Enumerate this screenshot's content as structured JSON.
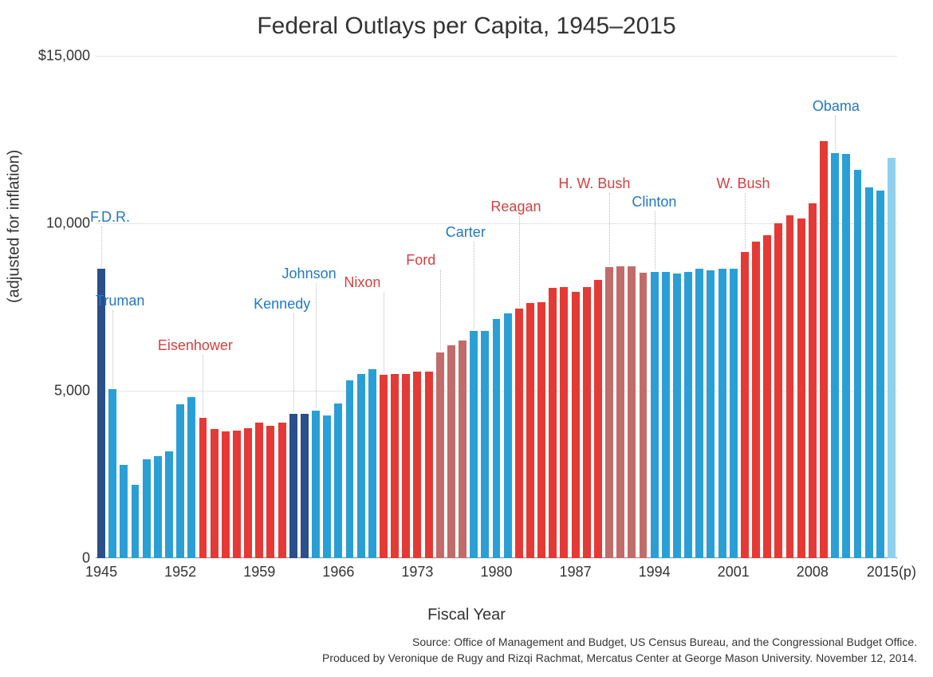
{
  "type": "bar",
  "title": "Federal Outlays per Capita, 1945–2015",
  "ylabel": "(adjusted for inflation)",
  "xlabel": "Fiscal Year",
  "background_color": "#ffffff",
  "grid_color": "#e6e6e6",
  "title_fontsize": 30,
  "label_fontsize": 20,
  "tick_fontsize": 18,
  "pres_label_fontsize": 18,
  "ylim": [
    0,
    15000
  ],
  "yticks": [
    {
      "v": 0,
      "label": "0"
    },
    {
      "v": 5000,
      "label": "5,000"
    },
    {
      "v": 10000,
      "label": "10,000"
    },
    {
      "v": 15000,
      "label": "$15,000"
    }
  ],
  "xticks": [
    {
      "year": 1945,
      "label": "1945"
    },
    {
      "year": 1952,
      "label": "1952"
    },
    {
      "year": 1959,
      "label": "1959"
    },
    {
      "year": 1966,
      "label": "1966"
    },
    {
      "year": 1973,
      "label": "1973"
    },
    {
      "year": 1980,
      "label": "1980"
    },
    {
      "year": 1987,
      "label": "1987"
    },
    {
      "year": 1994,
      "label": "1994"
    },
    {
      "year": 2001,
      "label": "2001"
    },
    {
      "year": 2008,
      "label": "2008"
    },
    {
      "year": 2015,
      "label": "2015(p)"
    }
  ],
  "colors": {
    "dem": "#2a9fd6",
    "dem_dark": "#2a4f8a",
    "rep": "#e53935",
    "rep_muted": "#c26b6b",
    "proj": "#8fd0ef",
    "dem_text": "#1f78c7",
    "rep_text": "#d34040"
  },
  "bar_width_ratio": 0.7,
  "source_line1": "Source: Office of Management and Budget, US Census Bureau, and the Congressional Budget Office.",
  "source_line2": "Produced by Veronique de Rugy and Rizqi Rachmat, Mercatus Center at George Mason University. November 12, 2014.",
  "bars": [
    {
      "year": 1945,
      "value": 8650,
      "colorKey": "dem_dark"
    },
    {
      "year": 1946,
      "value": 5050,
      "colorKey": "dem"
    },
    {
      "year": 1947,
      "value": 2780,
      "colorKey": "dem"
    },
    {
      "year": 1948,
      "value": 2180,
      "colorKey": "dem"
    },
    {
      "year": 1949,
      "value": 2950,
      "colorKey": "dem"
    },
    {
      "year": 1950,
      "value": 3050,
      "colorKey": "dem"
    },
    {
      "year": 1951,
      "value": 3180,
      "colorKey": "dem"
    },
    {
      "year": 1952,
      "value": 4600,
      "colorKey": "dem"
    },
    {
      "year": 1953,
      "value": 4820,
      "colorKey": "dem"
    },
    {
      "year": 1954,
      "value": 4200,
      "colorKey": "rep"
    },
    {
      "year": 1955,
      "value": 3850,
      "colorKey": "rep"
    },
    {
      "year": 1956,
      "value": 3780,
      "colorKey": "rep"
    },
    {
      "year": 1957,
      "value": 3820,
      "colorKey": "rep"
    },
    {
      "year": 1958,
      "value": 3880,
      "colorKey": "rep"
    },
    {
      "year": 1959,
      "value": 4050,
      "colorKey": "rep"
    },
    {
      "year": 1960,
      "value": 3950,
      "colorKey": "rep"
    },
    {
      "year": 1961,
      "value": 4050,
      "colorKey": "rep"
    },
    {
      "year": 1962,
      "value": 4300,
      "colorKey": "dem_dark"
    },
    {
      "year": 1963,
      "value": 4300,
      "colorKey": "dem_dark"
    },
    {
      "year": 1964,
      "value": 4400,
      "colorKey": "dem"
    },
    {
      "year": 1965,
      "value": 4270,
      "colorKey": "dem"
    },
    {
      "year": 1966,
      "value": 4620,
      "colorKey": "dem"
    },
    {
      "year": 1967,
      "value": 5300,
      "colorKey": "dem"
    },
    {
      "year": 1968,
      "value": 5500,
      "colorKey": "dem"
    },
    {
      "year": 1969,
      "value": 5650,
      "colorKey": "dem"
    },
    {
      "year": 1970,
      "value": 5480,
      "colorKey": "rep"
    },
    {
      "year": 1971,
      "value": 5500,
      "colorKey": "rep"
    },
    {
      "year": 1972,
      "value": 5500,
      "colorKey": "rep"
    },
    {
      "year": 1973,
      "value": 5580,
      "colorKey": "rep"
    },
    {
      "year": 1974,
      "value": 5580,
      "colorKey": "rep"
    },
    {
      "year": 1975,
      "value": 6150,
      "colorKey": "rep_muted"
    },
    {
      "year": 1976,
      "value": 6350,
      "colorKey": "rep_muted"
    },
    {
      "year": 1977,
      "value": 6500,
      "colorKey": "rep_muted"
    },
    {
      "year": 1978,
      "value": 6780,
      "colorKey": "dem"
    },
    {
      "year": 1979,
      "value": 6780,
      "colorKey": "dem"
    },
    {
      "year": 1980,
      "value": 7150,
      "colorKey": "dem"
    },
    {
      "year": 1981,
      "value": 7300,
      "colorKey": "dem"
    },
    {
      "year": 1982,
      "value": 7450,
      "colorKey": "rep"
    },
    {
      "year": 1983,
      "value": 7620,
      "colorKey": "rep"
    },
    {
      "year": 1984,
      "value": 7650,
      "colorKey": "rep"
    },
    {
      "year": 1985,
      "value": 8080,
      "colorKey": "rep"
    },
    {
      "year": 1986,
      "value": 8100,
      "colorKey": "rep"
    },
    {
      "year": 1987,
      "value": 7950,
      "colorKey": "rep"
    },
    {
      "year": 1988,
      "value": 8100,
      "colorKey": "rep"
    },
    {
      "year": 1989,
      "value": 8300,
      "colorKey": "rep"
    },
    {
      "year": 1990,
      "value": 8700,
      "colorKey": "rep_muted"
    },
    {
      "year": 1991,
      "value": 8720,
      "colorKey": "rep_muted"
    },
    {
      "year": 1992,
      "value": 8720,
      "colorKey": "rep_muted"
    },
    {
      "year": 1993,
      "value": 8520,
      "colorKey": "rep_muted"
    },
    {
      "year": 1994,
      "value": 8550,
      "colorKey": "dem"
    },
    {
      "year": 1995,
      "value": 8550,
      "colorKey": "dem"
    },
    {
      "year": 1996,
      "value": 8500,
      "colorKey": "dem"
    },
    {
      "year": 1997,
      "value": 8550,
      "colorKey": "dem"
    },
    {
      "year": 1998,
      "value": 8650,
      "colorKey": "dem"
    },
    {
      "year": 1999,
      "value": 8600,
      "colorKey": "dem"
    },
    {
      "year": 2000,
      "value": 8650,
      "colorKey": "dem"
    },
    {
      "year": 2001,
      "value": 8650,
      "colorKey": "dem"
    },
    {
      "year": 2002,
      "value": 9150,
      "colorKey": "rep"
    },
    {
      "year": 2003,
      "value": 9450,
      "colorKey": "rep"
    },
    {
      "year": 2004,
      "value": 9650,
      "colorKey": "rep"
    },
    {
      "year": 2005,
      "value": 10000,
      "colorKey": "rep"
    },
    {
      "year": 2006,
      "value": 10250,
      "colorKey": "rep"
    },
    {
      "year": 2007,
      "value": 10150,
      "colorKey": "rep"
    },
    {
      "year": 2008,
      "value": 10600,
      "colorKey": "rep"
    },
    {
      "year": 2009,
      "value": 12450,
      "colorKey": "rep"
    },
    {
      "year": 2010,
      "value": 12100,
      "colorKey": "dem"
    },
    {
      "year": 2011,
      "value": 12080,
      "colorKey": "dem"
    },
    {
      "year": 2012,
      "value": 11600,
      "colorKey": "dem"
    },
    {
      "year": 2013,
      "value": 11080,
      "colorKey": "dem"
    },
    {
      "year": 2014,
      "value": 10970,
      "colorKey": "dem"
    },
    {
      "year": 2015,
      "value": 11950,
      "colorKey": "proj"
    }
  ],
  "presidents": [
    {
      "name": "F.D.R.",
      "party": "dem",
      "label_year": 1944.0,
      "label_value": 10200,
      "leader_year": 1945,
      "align": "left"
    },
    {
      "name": "Truman",
      "party": "dem",
      "label_year": 1944.5,
      "label_value": 7700,
      "leader_year": 1946,
      "align": "left"
    },
    {
      "name": "Eisenhower",
      "party": "rep",
      "label_year": 1950.0,
      "label_value": 6350,
      "leader_year": 1954,
      "align": "left"
    },
    {
      "name": "Kennedy",
      "party": "dem",
      "label_year": 1958.5,
      "label_value": 7600,
      "leader_year": 1962,
      "align": "left"
    },
    {
      "name": "Johnson",
      "party": "dem",
      "label_year": 1961.0,
      "label_value": 8500,
      "leader_year": 1964,
      "align": "left"
    },
    {
      "name": "Nixon",
      "party": "rep",
      "label_year": 1966.5,
      "label_value": 8250,
      "leader_year": 1970,
      "align": "left"
    },
    {
      "name": "Ford",
      "party": "rep",
      "label_year": 1972.0,
      "label_value": 8900,
      "leader_year": 1975,
      "align": "left"
    },
    {
      "name": "Carter",
      "party": "dem",
      "label_year": 1975.5,
      "label_value": 9750,
      "leader_year": 1978,
      "align": "left"
    },
    {
      "name": "Reagan",
      "party": "rep",
      "label_year": 1979.5,
      "label_value": 10500,
      "leader_year": 1982,
      "align": "left"
    },
    {
      "name": "H. W. Bush",
      "party": "rep",
      "label_year": 1985.5,
      "label_value": 11200,
      "leader_year": 1990,
      "align": "left"
    },
    {
      "name": "Clinton",
      "party": "dem",
      "label_year": 1992.0,
      "label_value": 10650,
      "leader_year": 1994,
      "align": "left"
    },
    {
      "name": "W. Bush",
      "party": "rep",
      "label_year": 1999.5,
      "label_value": 11200,
      "leader_year": 2002,
      "align": "left"
    },
    {
      "name": "Obama",
      "party": "dem",
      "label_year": 2008.0,
      "label_value": 13500,
      "leader_year": 2010,
      "align": "left"
    }
  ]
}
